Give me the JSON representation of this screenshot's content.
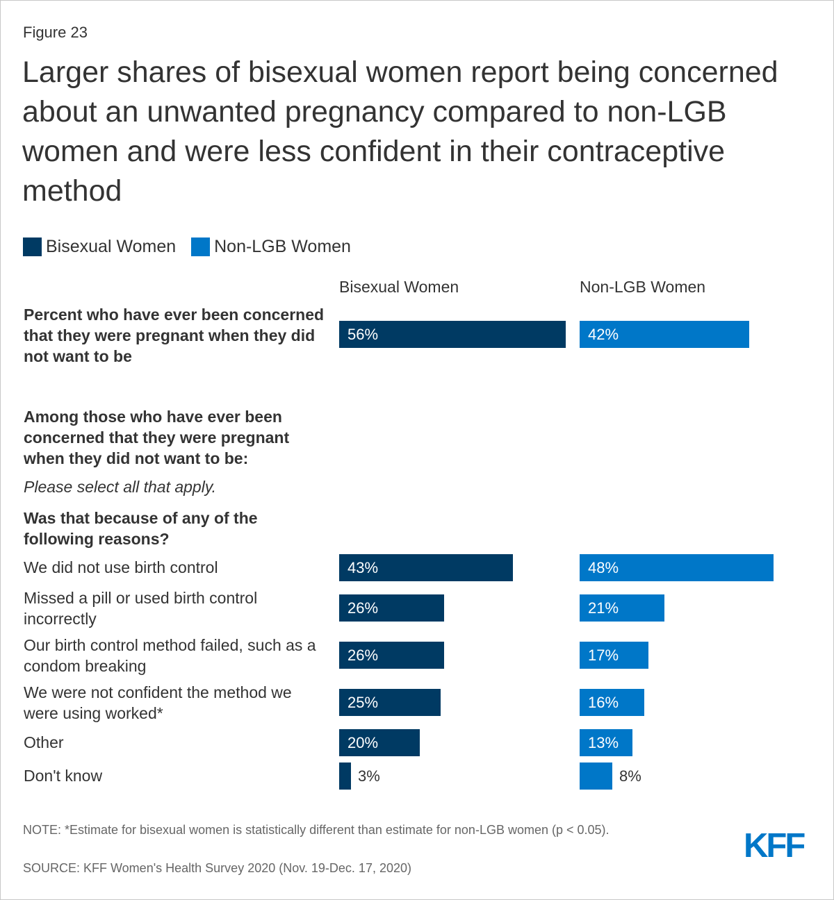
{
  "figure_label": "Figure 23",
  "title": "Larger shares of bisexual women report being concerned about an unwanted pregnancy compared to non-LGB women and were less confident in their contraceptive method",
  "colors": {
    "bisexual": "#003a63",
    "non_lgb": "#0077c8",
    "text": "#333333",
    "note": "#666666"
  },
  "legend": [
    "Bisexual Women",
    "Non-LGB Women"
  ],
  "column_headers": [
    "Bisexual Women",
    "Non-LGB Women"
  ],
  "section_heading": "Among those who have ever been concerned that they were pregnant when they did not want to be:",
  "instruction": "Please select all that apply.",
  "question": "Was that because of any of the following reasons?",
  "chart_data": {
    "type": "bar",
    "orientation": "horizontal",
    "title": "Larger shares of bisexual women report being concerned about an unwanted pregnancy compared to non-LGB women and were less confident in their contraceptive method",
    "categories": [
      "Percent who have ever been concerned that they were pregnant when they did not want to be",
      "We did not use birth control",
      "Missed a pill or used birth control incorrectly",
      "Our birth control method failed, such as a condom breaking",
      "We were not confident the method we were using worked*",
      "Other",
      "Don't know"
    ],
    "series": [
      {
        "name": "Bisexual Women",
        "values": [
          56,
          43,
          26,
          26,
          25,
          20,
          3
        ],
        "labels": [
          "56%",
          "43%",
          "26%",
          "26%",
          "25%",
          "20%",
          "3%"
        ]
      },
      {
        "name": "Non-LGB Women",
        "values": [
          42,
          48,
          21,
          17,
          16,
          13,
          8
        ],
        "labels": [
          "42%",
          "48%",
          "21%",
          "17%",
          "16%",
          "13%",
          "8%"
        ]
      }
    ],
    "xlim": [
      0,
      100
    ],
    "unit": "%"
  },
  "note": "NOTE: *Estimate for bisexual women is statistically different than estimate for non-LGB women (p < 0.05).",
  "source": "SOURCE: KFF Women's Health Survey 2020 (Nov. 19-Dec. 17, 2020)",
  "logo_text": "KFF"
}
